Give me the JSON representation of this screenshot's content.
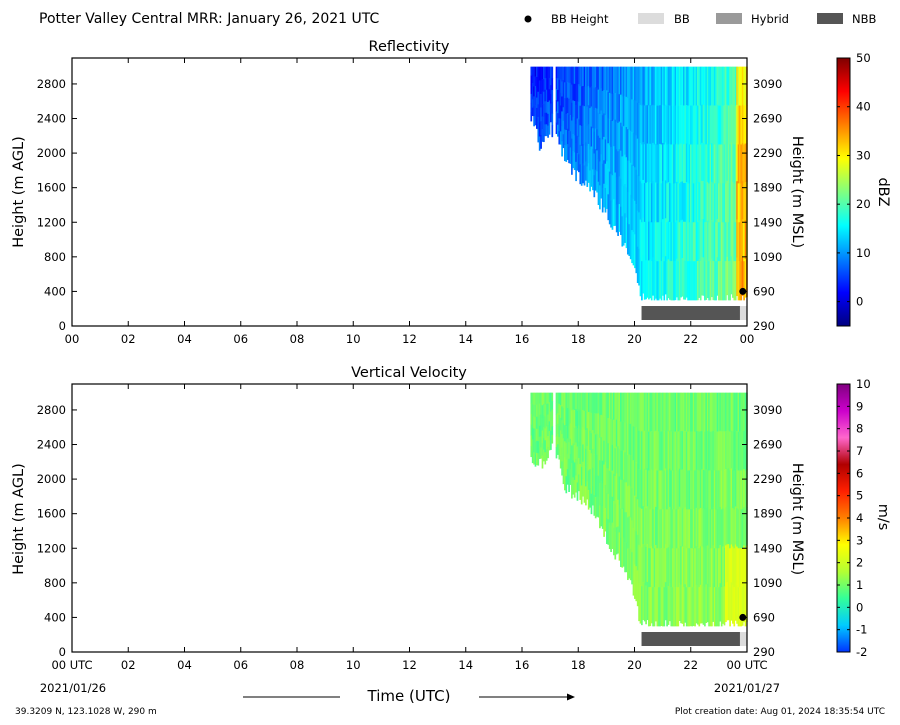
{
  "header": {
    "title": "Potter Valley Central MRR:  January 26, 2021 UTC",
    "legend": [
      {
        "label": "BB Height",
        "kind": "dot",
        "color": "#000000"
      },
      {
        "label": "BB",
        "kind": "box",
        "color": "#dcdcdc"
      },
      {
        "label": "Hybrid",
        "kind": "box",
        "color": "#9a9a9a"
      },
      {
        "label": "NBB",
        "kind": "box",
        "color": "#555555"
      }
    ]
  },
  "footer": {
    "location": "39.3209 N, 123.1028 W, 290 m",
    "creation": "Plot creation date: Aug 01, 2024 18:35:54 UTC",
    "xlabel": "Time (UTC)",
    "start_date": "2021/01/26",
    "end_date": "2021/01/27"
  },
  "chart_data": [
    {
      "type": "heatmap",
      "title": "Reflectivity",
      "ylabel": "Height (m AGL)",
      "ylabel_right": "Height (m MSL)",
      "colorbar_label": "dBZ",
      "colorbar_ticks": [
        0,
        10,
        20,
        30,
        40,
        50
      ],
      "colorbar_range": [
        -5,
        50
      ],
      "colormap": [
        "#00007f",
        "#0000ff",
        "#0080ff",
        "#00ffff",
        "#80ff80",
        "#ffff00",
        "#ff8000",
        "#ff0000",
        "#7f0000"
      ],
      "x_tick_labels": [
        "00",
        "02",
        "04",
        "06",
        "08",
        "10",
        "12",
        "14",
        "16",
        "18",
        "20",
        "22",
        "00"
      ],
      "x_range_hours": [
        0,
        24
      ],
      "y_ticks": [
        0,
        400,
        800,
        1200,
        1600,
        2000,
        2400,
        2800
      ],
      "y_ticks_right": [
        290,
        690,
        1090,
        1490,
        1890,
        2290,
        2690,
        3090
      ],
      "y_range": [
        0,
        3100
      ],
      "data_top_height": 3000,
      "data_bottom_height": 300,
      "echo_coverage": [
        {
          "time_utc": 16.3,
          "bottom_height": 2450
        },
        {
          "time_utc": 16.6,
          "bottom_height": 2100
        },
        {
          "time_utc": 17.0,
          "bottom_height": 2300
        },
        {
          "time_utc": 17.5,
          "bottom_height": 1950
        },
        {
          "time_utc": 18.0,
          "bottom_height": 1700
        },
        {
          "time_utc": 18.5,
          "bottom_height": 1550
        },
        {
          "time_utc": 19.0,
          "bottom_height": 1300
        },
        {
          "time_utc": 19.5,
          "bottom_height": 1000
        },
        {
          "time_utc": 20.0,
          "bottom_height": 650
        },
        {
          "time_utc": 20.2,
          "bottom_height": 300
        },
        {
          "time_utc": 24.0,
          "bottom_height": 300
        }
      ],
      "bright_band": {
        "kind": "NBB",
        "start": 20.25,
        "end": 23.75,
        "bb_height_time": 23.85,
        "bb_height": 400
      }
    },
    {
      "type": "heatmap",
      "title": "Vertical Velocity",
      "ylabel": "Height (m AGL)",
      "ylabel_right": "Height (m MSL)",
      "colorbar_label": "m/s",
      "colorbar_ticks": [
        -2,
        -1,
        0,
        1,
        2,
        3,
        4,
        5,
        6,
        7,
        8,
        9,
        10
      ],
      "colorbar_range": [
        -2,
        10
      ],
      "colormap": [
        "#0033ff",
        "#00ccff",
        "#33ff99",
        "#b3ff33",
        "#ffff00",
        "#ff8000",
        "#ff2000",
        "#b00000",
        "#ff66cc",
        "#cc00cc",
        "#800080"
      ],
      "x_tick_labels": [
        "00 UTC",
        "02",
        "04",
        "06",
        "08",
        "10",
        "12",
        "14",
        "16",
        "18",
        "20",
        "22",
        "00 UTC"
      ],
      "x_range_hours": [
        0,
        24
      ],
      "y_ticks": [
        0,
        400,
        800,
        1200,
        1600,
        2000,
        2400,
        2800
      ],
      "y_ticks_right": [
        290,
        690,
        1090,
        1490,
        1890,
        2290,
        2690,
        3090
      ],
      "y_range": [
        0,
        3100
      ],
      "data_top_height": 3000,
      "data_bottom_height": 300,
      "echo_coverage": [
        {
          "time_utc": 16.3,
          "bottom_height": 2200
        },
        {
          "time_utc": 16.8,
          "bottom_height": 2150
        },
        {
          "time_utc": 17.1,
          "bottom_height": 2400
        },
        {
          "time_utc": 17.5,
          "bottom_height": 1900
        },
        {
          "time_utc": 18.0,
          "bottom_height": 1800
        },
        {
          "time_utc": 18.5,
          "bottom_height": 1650
        },
        {
          "time_utc": 19.0,
          "bottom_height": 1300
        },
        {
          "time_utc": 19.5,
          "bottom_height": 1000
        },
        {
          "time_utc": 20.0,
          "bottom_height": 650
        },
        {
          "time_utc": 20.2,
          "bottom_height": 300
        },
        {
          "time_utc": 24.0,
          "bottom_height": 300
        }
      ],
      "bright_band": {
        "kind": "NBB",
        "start": 20.25,
        "end": 23.75,
        "bb_height_time": 23.85,
        "bb_height": 400
      }
    }
  ]
}
